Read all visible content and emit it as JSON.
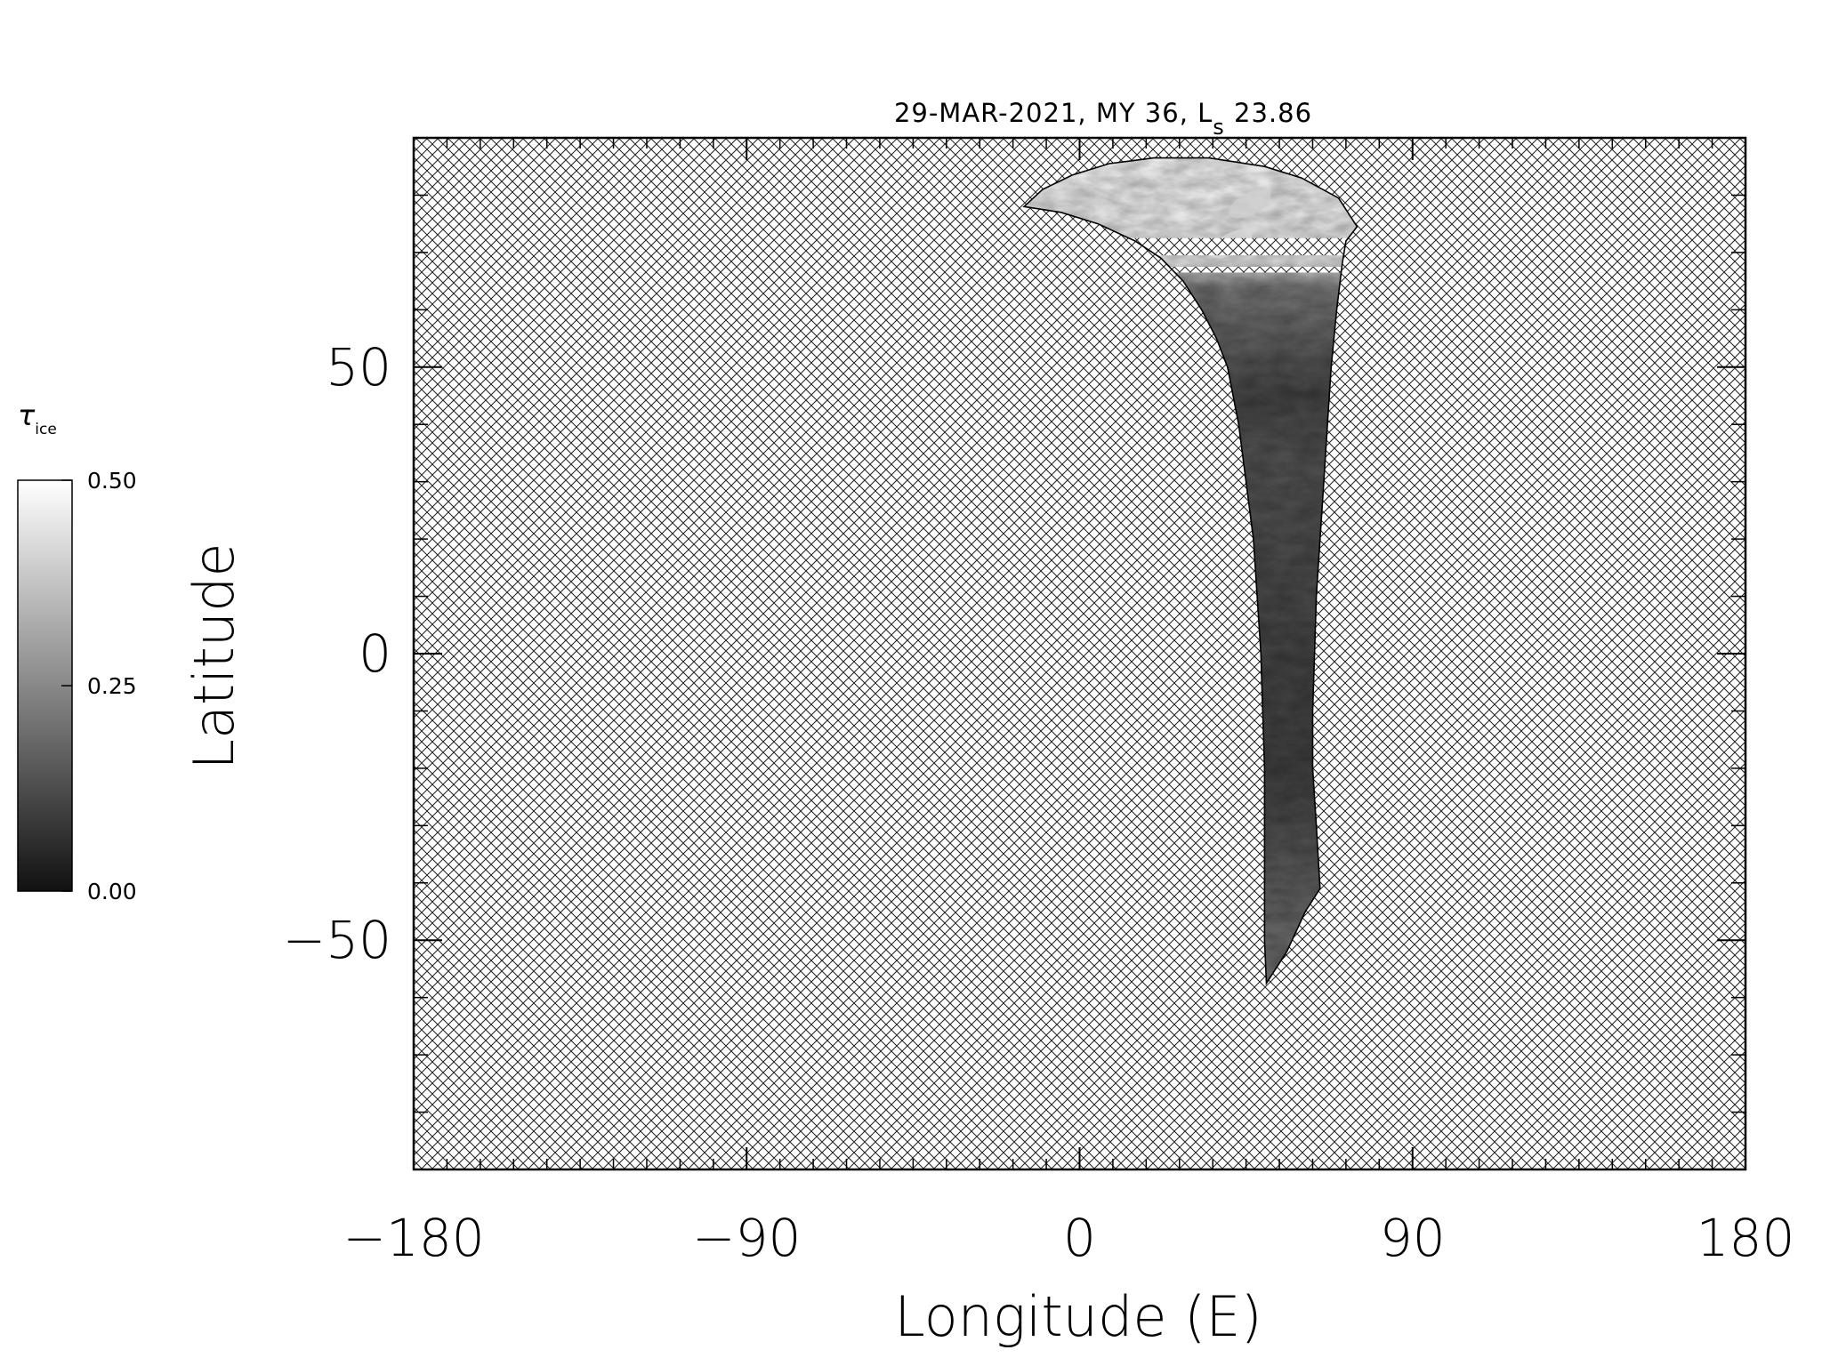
{
  "chart_data": {
    "type": "heatmap",
    "title": {
      "main": "29-MAR-2021, MY 36,  L",
      "subscript": "s",
      "suffix": " 23.86"
    },
    "xlabel": "Longitude (E)",
    "ylabel": "Latitude",
    "xlim": [
      -180,
      180
    ],
    "ylim": [
      -90,
      90
    ],
    "x_major_ticks": [
      -180,
      -90,
      0,
      90,
      180
    ],
    "x_tick_labels": [
      "−180",
      "−90",
      "0",
      "90",
      "180"
    ],
    "y_major_ticks": [
      -50,
      0,
      50
    ],
    "y_tick_labels": [
      "−50",
      "0",
      "50"
    ],
    "x_minor_step": 9,
    "y_minor_step": 10,
    "no_data_pattern": "crosshatch",
    "colorbar": {
      "label_main": "τ",
      "label_sub": "ice",
      "range": [
        0.0,
        0.5
      ],
      "tick_values": [
        0.0,
        0.25,
        0.5
      ],
      "tick_labels": [
        "0.00",
        "0.25",
        "0.50"
      ],
      "color_low": "#111111",
      "color_high": "#ffffff"
    },
    "data_swath": {
      "description": "single orbital swath of ice optical depth",
      "boundary": [
        [
          -15,
          78
        ],
        [
          -5,
          77
        ],
        [
          5,
          75
        ],
        [
          15,
          72
        ],
        [
          22,
          69
        ],
        [
          28,
          65
        ],
        [
          33,
          60
        ],
        [
          37,
          55
        ],
        [
          40,
          50
        ],
        [
          43,
          40
        ],
        [
          45,
          30
        ],
        [
          47,
          20
        ],
        [
          48,
          10
        ],
        [
          49,
          0
        ],
        [
          49.5,
          -10
        ],
        [
          50,
          -20
        ],
        [
          50,
          -30
        ],
        [
          50,
          -40
        ],
        [
          50,
          -50
        ],
        [
          50.5,
          -57.5
        ],
        [
          56,
          -52
        ],
        [
          61,
          -45
        ],
        [
          65,
          -41
        ],
        [
          64,
          -30
        ],
        [
          63,
          -20
        ],
        [
          63,
          -10
        ],
        [
          63.5,
          0
        ],
        [
          64,
          10
        ],
        [
          65,
          20
        ],
        [
          66,
          30
        ],
        [
          67,
          40
        ],
        [
          68,
          50
        ],
        [
          69.5,
          60
        ],
        [
          71,
          68
        ],
        [
          72,
          72
        ],
        [
          75,
          74.5
        ],
        [
          70,
          79.5
        ],
        [
          60,
          83
        ],
        [
          50,
          85
        ],
        [
          35,
          86.5
        ],
        [
          20,
          86.5
        ],
        [
          8,
          85.5
        ],
        [
          -2,
          83.5
        ],
        [
          -10,
          81
        ]
      ],
      "profile": [
        {
          "lat": 86,
          "tau": 0.49
        },
        {
          "lat": 75,
          "tau": 0.47
        },
        {
          "lat": 68,
          "tau": 0.44
        },
        {
          "lat": 64,
          "tau": 0.22
        },
        {
          "lat": 55,
          "tau": 0.17
        },
        {
          "lat": 45,
          "tau": 0.11
        },
        {
          "lat": 35,
          "tau": 0.14
        },
        {
          "lat": 20,
          "tau": 0.13
        },
        {
          "lat": 0,
          "tau": 0.11
        },
        {
          "lat": -20,
          "tau": 0.1
        },
        {
          "lat": -35,
          "tau": 0.14
        },
        {
          "lat": -45,
          "tau": 0.18
        },
        {
          "lat": -57,
          "tau": 0.2
        }
      ],
      "no_data_bands": [
        {
          "lat_min": 69.5,
          "lat_max": 72.5
        },
        {
          "lat_min": 66.5,
          "lat_max": 67.5
        }
      ],
      "gaps": [
        {
          "lon": 67.5,
          "lat": 12.5,
          "dlon": 1.3,
          "dlat": 7
        }
      ],
      "cloud_features": [
        {
          "lon": 46,
          "lat": 78.5,
          "tau": 0.4
        },
        {
          "lon": 41,
          "lat": 71.5,
          "tau": 0.42
        }
      ]
    }
  }
}
